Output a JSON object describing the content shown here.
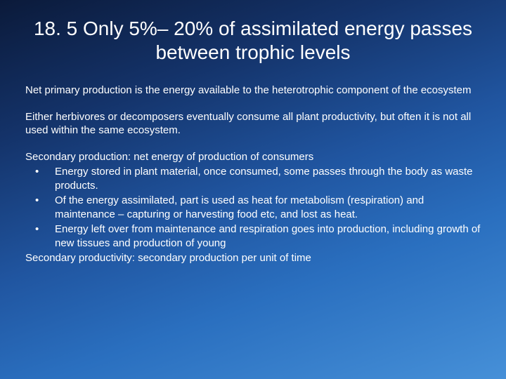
{
  "slide": {
    "background_gradient": [
      "#0b1a3a",
      "#14336a",
      "#2055a0",
      "#2a6fbf",
      "#4690d8"
    ],
    "title_font_family": "Arial",
    "title_fontsize": 28,
    "body_font_family": "Verdana",
    "body_fontsize": 15,
    "text_color": "#ffffff"
  },
  "title": "18. 5 Only 5%– 20% of assimilated energy passes between trophic levels",
  "para1": "Net primary production is the energy available to the heterotrophic component of the ecosystem",
  "para2": "Either herbivores or decomposers eventually consume all plant productivity, but often it is not all used within the same ecosystem.",
  "secondary_heading": "Secondary production: net energy of production of consumers",
  "bullets": [
    "Energy stored in plant material, once consumed, some passes through the body as waste products.",
    "Of the energy assimilated, part is used as heat for metabolism (respiration) and maintenance – capturing or harvesting food etc, and lost as heat.",
    "Energy left over from maintenance and respiration goes into production, including growth of new tissues and production of young"
  ],
  "footer": "Secondary productivity: secondary production per unit of time"
}
